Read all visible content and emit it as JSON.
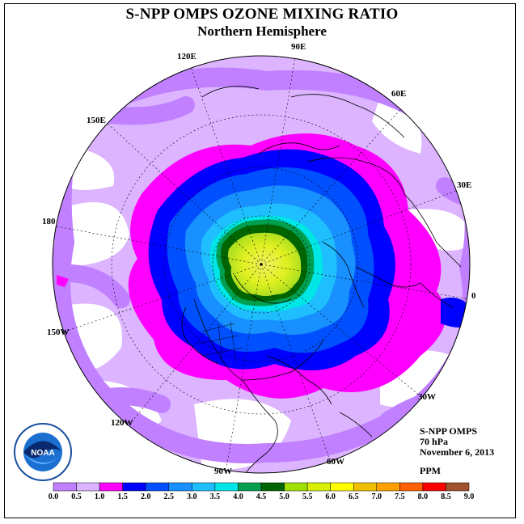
{
  "title": "S-NPP OMPS OZONE MIXING RATIO",
  "subtitle": "Northern Hemisphere",
  "meridians": {
    "e90": "90E",
    "e120": "120E",
    "e60": "60E",
    "e150": "150E",
    "e30": "30E",
    "m180": "180",
    "m0": "0",
    "w150": "150W",
    "w30": "30W",
    "w120": "120W",
    "w60": "60W",
    "w90": "90W"
  },
  "info": {
    "instrument": "S-NPP OMPS",
    "level": "70 hPa",
    "date": "November 6, 2013",
    "units": "PPM"
  },
  "logo": {
    "text": "NOAA"
  },
  "colorbar": {
    "labels": [
      "0.0",
      "0.5",
      "1.0",
      "1.5",
      "2.0",
      "2.5",
      "3.0",
      "3.5",
      "4.0",
      "4.5",
      "5.0",
      "5.5",
      "6.0",
      "6.5",
      "7.0",
      "7.5",
      "8.0",
      "8.5",
      "9.0"
    ],
    "colors": [
      "#c080ff",
      "#dcb4ff",
      "#ff00ff",
      "#0000ff",
      "#0050ff",
      "#1890ff",
      "#1ebeff",
      "#00e6e6",
      "#00a050",
      "#006400",
      "#a0e000",
      "#d8f000",
      "#ffff00",
      "#f0c000",
      "#ffa000",
      "#ff6000",
      "#ff0000",
      "#a0522d"
    ]
  }
}
